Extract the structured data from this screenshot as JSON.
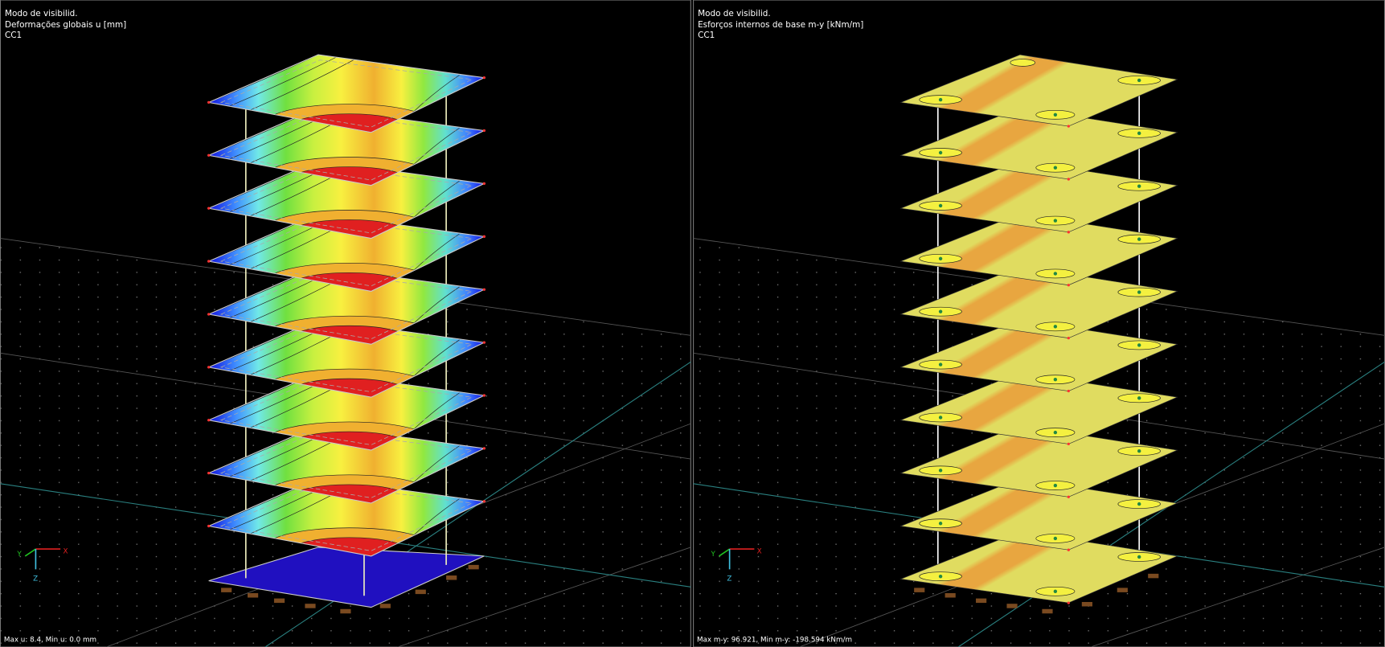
{
  "panels": [
    {
      "mode": "Modo de visibilid.",
      "result": "Deformações globais u [mm]",
      "load_case": "CC1",
      "footer": "Max u: 8.4, Min u: 0.0 mm",
      "axes": {
        "x": "X",
        "y": "Y",
        "z": "Z"
      }
    },
    {
      "mode": "Modo de visibilid.",
      "result": "Esforços internos de base m-y [kNm/m]",
      "load_case": "CC1",
      "footer": "Max m-y: 96.921, Min m-y: -198.594 kNm/m",
      "axes": {
        "x": "X",
        "y": "Y",
        "z": "Z"
      }
    }
  ]
}
